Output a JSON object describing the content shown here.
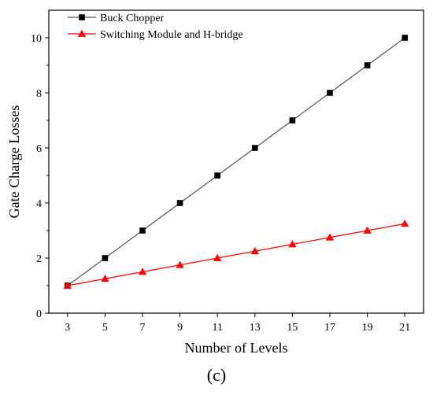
{
  "chart_data": {
    "type": "line",
    "xlabel": "Number of Levels",
    "ylabel": "Gate Charge Losses",
    "caption": "(c)",
    "x": [
      3,
      5,
      7,
      9,
      11,
      13,
      15,
      17,
      19,
      21
    ],
    "xlim": [
      2,
      22
    ],
    "ylim": [
      0,
      11
    ],
    "x_ticks": [
      3,
      5,
      7,
      9,
      11,
      13,
      15,
      17,
      19,
      21
    ],
    "y_ticks": [
      0,
      2,
      4,
      6,
      8,
      10
    ],
    "grid": false,
    "legend_position": "top-left",
    "series": [
      {
        "name": "Buck Chopper",
        "values": [
          1,
          2,
          3,
          4,
          5,
          6,
          7,
          8,
          9,
          10
        ],
        "line_color": "#555555",
        "marker_color": "#000000",
        "marker": "square"
      },
      {
        "name": "Switching Module and H-bridge",
        "values": [
          1,
          1.25,
          1.5,
          1.75,
          2,
          2.25,
          2.5,
          2.75,
          3,
          3.25
        ],
        "line_color": "#ff0000",
        "marker_color": "#ff0000",
        "marker": "triangle"
      }
    ]
  }
}
